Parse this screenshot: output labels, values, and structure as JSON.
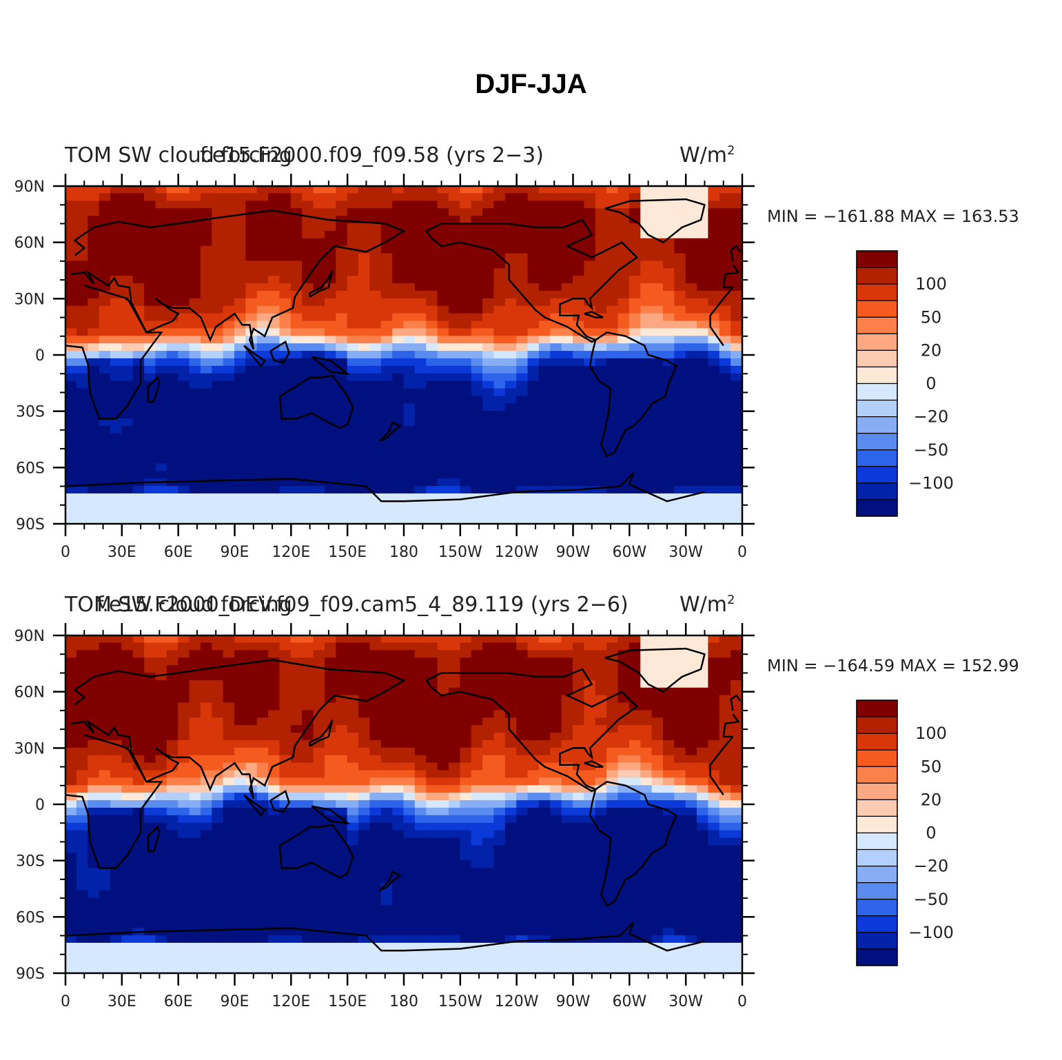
{
  "figure": {
    "title": "DJF-JJA"
  },
  "panels": [
    {
      "left_title": "TOM SW cloud forcing",
      "center_title": "f.e15.F2000.f09_f09.58 (yrs 2−3)",
      "units": "W/m",
      "units_exp": "2",
      "stats": "MIN = −161.88 MAX = 163.53"
    },
    {
      "left_title": "TOM SW cloud forcing",
      "center_title": "f.e15.F2000_DEV.f09_f09.cam5_4_89.119 (yrs 2−6)",
      "units": "W/m",
      "units_exp": "2",
      "stats": "MIN = −164.59 MAX = 152.99"
    }
  ],
  "axes": {
    "lat_labels": [
      "90N",
      "60N",
      "30N",
      "0",
      "30S",
      "60S",
      "90S"
    ],
    "lon_labels": [
      "0",
      "30E",
      "60E",
      "90E",
      "120E",
      "150E",
      "180",
      "150W",
      "120W",
      "90W",
      "60W",
      "30W",
      "0"
    ]
  },
  "colorbar": {
    "labels": [
      "100",
      "50",
      "20",
      "0",
      "−20",
      "−50",
      "−100"
    ],
    "colors": [
      "#800000",
      "#b22200",
      "#d8370a",
      "#f55a1e",
      "#fb8049",
      "#fca882",
      "#fdcbb2",
      "#fee8d8",
      "#d6e8fd",
      "#b3cffb",
      "#87aef5",
      "#5a8cf0",
      "#2e64ea",
      "#0c3ad8",
      "#0222aa",
      "#00107e"
    ]
  },
  "chart_data": [
    {
      "type": "heatmap",
      "title": "TOM SW cloud forcing",
      "subtitle": "f.e15.F2000.f09_f09.58 (yrs 2−3)",
      "units": "W/m2",
      "min": -161.88,
      "max": 163.53,
      "lon_range": [
        0,
        360
      ],
      "lat_range": [
        -90,
        90
      ],
      "colorbar_levels": [
        -120,
        -100,
        -80,
        -65,
        -50,
        -35,
        -20,
        -10,
        0,
        10,
        20,
        35,
        50,
        75,
        100,
        125
      ]
    },
    {
      "type": "heatmap",
      "title": "TOM SW cloud forcing",
      "subtitle": "f.e15.F2000_DEV.f09_f09.cam5_4_89.119 (yrs 2−6)",
      "units": "W/m2",
      "min": -164.59,
      "max": 152.99,
      "lon_range": [
        0,
        360
      ],
      "lat_range": [
        -90,
        90
      ],
      "colorbar_levels": [
        -120,
        -100,
        -80,
        -65,
        -50,
        -35,
        -20,
        -10,
        0,
        10,
        20,
        35,
        50,
        75,
        100,
        125
      ]
    }
  ]
}
